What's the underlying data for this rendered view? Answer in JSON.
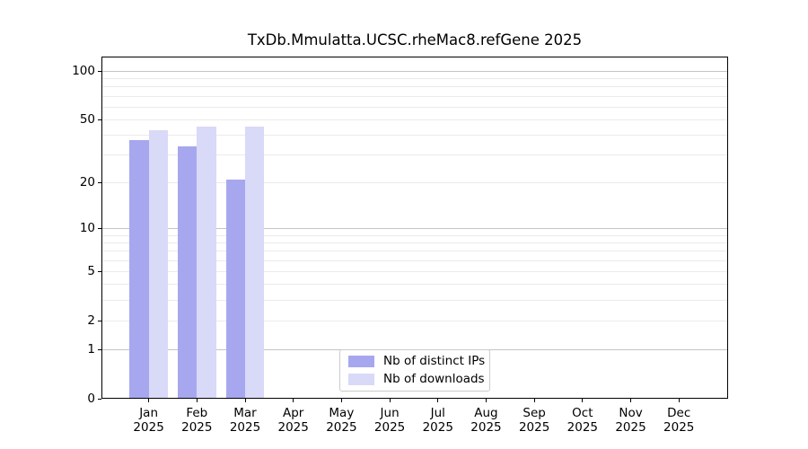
{
  "chart_data": {
    "type": "bar",
    "title": "TxDb.Mmulatta.UCSC.rheMac8.refGene 2025",
    "categories": [
      "Jan",
      "Feb",
      "Mar",
      "Apr",
      "May",
      "Jun",
      "Jul",
      "Aug",
      "Sep",
      "Oct",
      "Nov",
      "Dec"
    ],
    "x_tick_year": "2025",
    "series": [
      {
        "name": "Nb of distinct IPs",
        "color": "#a7a7f0",
        "values": [
          37,
          34,
          21,
          0,
          0,
          0,
          0,
          0,
          0,
          0,
          0,
          0
        ]
      },
      {
        "name": "Nb of downloads",
        "color": "#d9d9f8",
        "values": [
          43,
          45,
          45,
          0,
          0,
          0,
          0,
          0,
          0,
          0,
          0,
          0
        ]
      }
    ],
    "yscale": "log1p",
    "yticks": [
      100,
      50,
      20,
      10,
      5,
      2,
      1,
      0
    ],
    "ylim": [
      0,
      123
    ],
    "xlabel": "",
    "ylabel": "",
    "grid": "horizontal-log-minor",
    "grid_major_values": [
      1,
      10,
      100
    ],
    "legend_position": "lower center",
    "bar_group_width": 0.8
  }
}
